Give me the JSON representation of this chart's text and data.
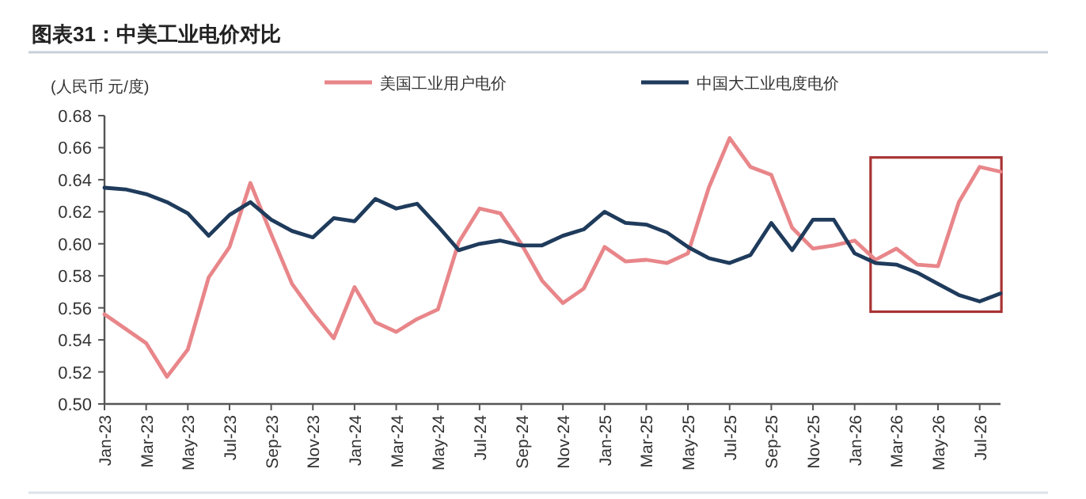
{
  "chart_data": {
    "type": "line",
    "title": "图表31：中美工业电价对比",
    "ylabel": "(人民币 元/度)",
    "x": [
      "2023-01",
      "2023-02",
      "2023-03",
      "2023-04",
      "2023-05",
      "2023-06",
      "2023-07",
      "2023-08",
      "2023-09",
      "2023-10",
      "2023-11",
      "2023-12",
      "2024-01",
      "2024-02",
      "2024-03",
      "2024-04",
      "2024-05",
      "2024-06",
      "2024-07",
      "2024-08",
      "2024-09",
      "2024-10",
      "2024-11",
      "2024-12",
      "2025-01",
      "2025-02",
      "2025-03",
      "2025-04",
      "2025-05",
      "2025-06",
      "2025-07",
      "2025-08",
      "2025-09",
      "2025-10",
      "2025-11",
      "2025-12",
      "2026-01",
      "2026-02",
      "2026-03",
      "2026-04",
      "2026-05",
      "2026-06",
      "2026-07",
      "2026-08"
    ],
    "series": [
      {
        "name": "美国工业用户电价",
        "color": "#e8868a",
        "values": [
          0.556,
          0.547,
          0.538,
          0.517,
          0.534,
          0.579,
          0.598,
          0.638,
          0.606,
          0.575,
          0.557,
          0.541,
          0.573,
          0.551,
          0.545,
          0.553,
          0.559,
          0.601,
          0.622,
          0.619,
          0.6,
          0.577,
          0.563,
          0.572,
          0.598,
          0.589,
          0.59,
          0.588,
          0.594,
          0.635,
          0.666,
          0.648,
          0.643,
          0.61,
          0.597,
          0.599,
          0.602,
          0.59,
          0.597,
          0.587,
          0.586,
          0.626,
          0.648,
          0.645
        ]
      },
      {
        "name": "中国大工业电度电价",
        "color": "#1f3b5c",
        "values": [
          0.635,
          0.634,
          0.631,
          0.626,
          0.619,
          0.605,
          0.618,
          0.626,
          0.615,
          0.608,
          0.604,
          0.616,
          0.614,
          0.628,
          0.622,
          0.625,
          0.611,
          0.596,
          0.6,
          0.602,
          0.599,
          0.599,
          0.605,
          0.609,
          0.62,
          0.613,
          0.612,
          0.607,
          0.598,
          0.591,
          0.588,
          0.593,
          0.613,
          0.596,
          0.615,
          0.615,
          0.594,
          0.588,
          0.587,
          0.582,
          0.575,
          0.568,
          0.564,
          0.569
        ]
      }
    ],
    "xlim": [
      "2023-01",
      "2026-08"
    ],
    "xticks": [
      {
        "value": "2023-01",
        "label": "Jan-23"
      },
      {
        "value": "2023-03",
        "label": "Mar-23"
      },
      {
        "value": "2023-05",
        "label": "May-23"
      },
      {
        "value": "2023-07",
        "label": "Jul-23"
      },
      {
        "value": "2023-09",
        "label": "Sep-23"
      },
      {
        "value": "2023-11",
        "label": "Nov-23"
      },
      {
        "value": "2024-01",
        "label": "Jan-24"
      },
      {
        "value": "2024-03",
        "label": "Mar-24"
      },
      {
        "value": "2024-05",
        "label": "May-24"
      },
      {
        "value": "2024-07",
        "label": "Jul-24"
      },
      {
        "value": "2024-09",
        "label": "Sep-24"
      },
      {
        "value": "2024-11",
        "label": "Nov-24"
      },
      {
        "value": "2025-01",
        "label": "Jan-25"
      },
      {
        "value": "2025-03",
        "label": "Mar-25"
      },
      {
        "value": "2025-05",
        "label": "May-25"
      },
      {
        "value": "2025-07",
        "label": "Jul-25"
      },
      {
        "value": "2025-09",
        "label": "Sep-25"
      },
      {
        "value": "2025-11",
        "label": "Nov-25"
      },
      {
        "value": "2026-01",
        "label": "Jan-26"
      },
      {
        "value": "2026-03",
        "label": "Mar-26"
      },
      {
        "value": "2026-05",
        "label": "May-26"
      },
      {
        "value": "2026-07",
        "label": "Jul-26"
      }
    ],
    "ylim": [
      0.5,
      0.68
    ],
    "yticks": [
      {
        "value": 0.5,
        "label": "0.50"
      },
      {
        "value": 0.52,
        "label": "0.52"
      },
      {
        "value": 0.54,
        "label": "0.54"
      },
      {
        "value": 0.56,
        "label": "0.56"
      },
      {
        "value": 0.58,
        "label": "0.58"
      },
      {
        "value": 0.6,
        "label": "0.60"
      },
      {
        "value": 0.62,
        "label": "0.62"
      },
      {
        "value": 0.64,
        "label": "0.64"
      },
      {
        "value": 0.66,
        "label": "0.66"
      },
      {
        "value": 0.68,
        "label": "0.68"
      }
    ],
    "legend": "top",
    "grid": false
  }
}
